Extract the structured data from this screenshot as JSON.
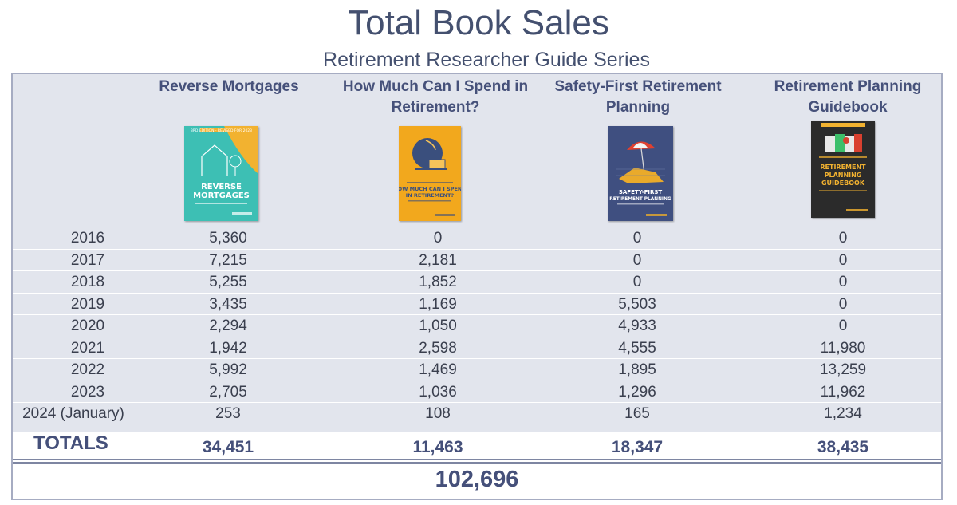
{
  "title": "Total Book Sales",
  "subtitle": "Retirement Researcher Guide Series",
  "chart_data": {
    "type": "table",
    "columns": [
      "Reverse Mortgages",
      "How Much Can I Spend in Retirement?",
      "Safety-First Retirement Planning",
      "Retirement Planning Guidebook"
    ],
    "rows": [
      {
        "year": "2016",
        "values": [
          "5,360",
          "0",
          "0",
          "0"
        ]
      },
      {
        "year": "2017",
        "values": [
          "7,215",
          "2,181",
          "0",
          "0"
        ]
      },
      {
        "year": "2018",
        "values": [
          "5,255",
          "1,852",
          "0",
          "0"
        ]
      },
      {
        "year": "2019",
        "values": [
          "3,435",
          "1,169",
          "5,503",
          "0"
        ]
      },
      {
        "year": "2020",
        "values": [
          "2,294",
          "1,050",
          "4,933",
          "0"
        ]
      },
      {
        "year": "2021",
        "values": [
          "1,942",
          "2,598",
          "4,555",
          "11,980"
        ]
      },
      {
        "year": "2022",
        "values": [
          "5,992",
          "1,469",
          "1,895",
          "13,259"
        ]
      },
      {
        "year": "2023",
        "values": [
          "2,705",
          "1,036",
          "1,296",
          "11,962"
        ]
      },
      {
        "year": "2024 (January)",
        "values": [
          "253",
          "108",
          "165",
          "1,234"
        ]
      }
    ],
    "totals_label": "TOTALS",
    "totals": [
      "34,451",
      "11,463",
      "18,347",
      "38,435"
    ],
    "grand_total": "102,696"
  },
  "covers": [
    {
      "icon": "reverse-mortgages-cover",
      "color": "#3dbfb4",
      "banner": "3RD EDITION - REVISED FOR 2023",
      "text": "REVERSE MORTGAGES"
    },
    {
      "icon": "how-much-can-i-spend-cover",
      "color": "#f2a81d",
      "text": "HOW MUCH CAN I SPEND IN RETIREMENT?"
    },
    {
      "icon": "safety-first-cover",
      "color": "#3f4f80",
      "text": "SAFETY-FIRST RETIREMENT PLANNING"
    },
    {
      "icon": "guidebook-cover",
      "color": "#2b2b2b",
      "text": "RETIREMENT PLANNING GUIDEBOOK"
    }
  ],
  "colors": {
    "band": "#e2e5ed",
    "text": "#45507a",
    "frame": "#a6acc2"
  }
}
